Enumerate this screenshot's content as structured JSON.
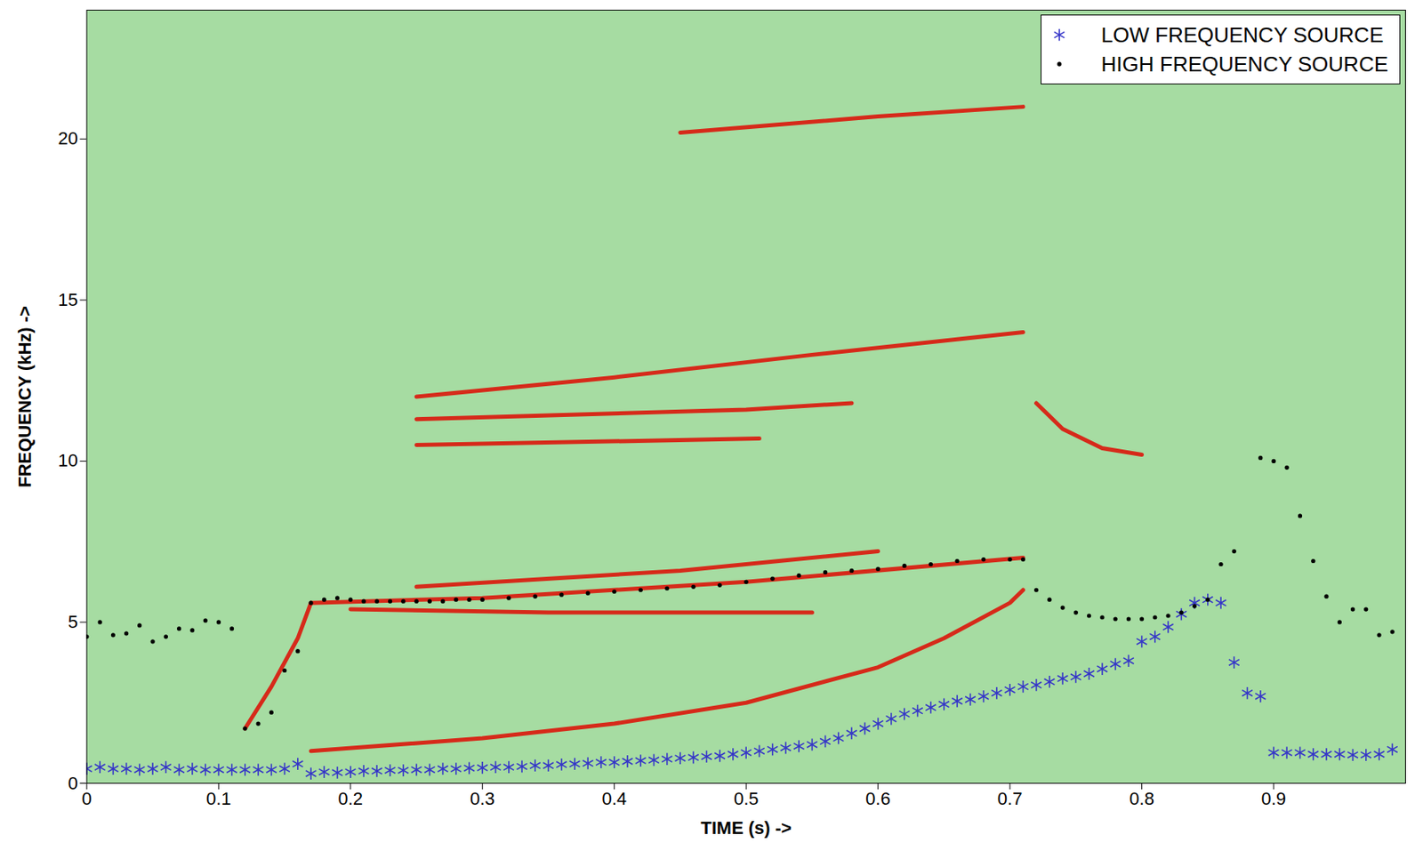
{
  "chart_data": {
    "type": "scatter",
    "xlabel": "TIME (s) ->",
    "ylabel": "FREQUENCY (kHz) ->",
    "xlim": [
      0,
      1
    ],
    "xticks": [
      0,
      0.1,
      0.2,
      0.3,
      0.4,
      0.5,
      0.6,
      0.7,
      0.8,
      0.9
    ],
    "ylim": [
      0,
      24
    ],
    "yticks": [
      0,
      5,
      10,
      15,
      20
    ],
    "legend": "top right",
    "series": [
      {
        "name": "LOW FREQUENCY SOURCE",
        "color": "#3535c8",
        "marker": "asterisk",
        "x": [
          0,
          0.01,
          0.02,
          0.03,
          0.04,
          0.05,
          0.06,
          0.07,
          0.08,
          0.09,
          0.1,
          0.11,
          0.12,
          0.13,
          0.14,
          0.15,
          0.16,
          0.17,
          0.18,
          0.19,
          0.2,
          0.21,
          0.22,
          0.23,
          0.24,
          0.25,
          0.26,
          0.27,
          0.28,
          0.29,
          0.3,
          0.31,
          0.32,
          0.33,
          0.34,
          0.35,
          0.36,
          0.37,
          0.38,
          0.39,
          0.4,
          0.41,
          0.42,
          0.43,
          0.44,
          0.45,
          0.46,
          0.47,
          0.48,
          0.49,
          0.5,
          0.51,
          0.52,
          0.53,
          0.54,
          0.55,
          0.56,
          0.57,
          0.58,
          0.59,
          0.6,
          0.61,
          0.62,
          0.63,
          0.64,
          0.65,
          0.66,
          0.67,
          0.68,
          0.69,
          0.7,
          0.71,
          0.72,
          0.73,
          0.74,
          0.75,
          0.76,
          0.77,
          0.78,
          0.79,
          0.8,
          0.81,
          0.82,
          0.83,
          0.84,
          0.85,
          0.86,
          0.87,
          0.88,
          0.89,
          0.9,
          0.91,
          0.92,
          0.93,
          0.94,
          0.95,
          0.96,
          0.97,
          0.98,
          0.99
        ],
        "values": [
          0.45,
          0.5,
          0.45,
          0.45,
          0.42,
          0.45,
          0.5,
          0.42,
          0.45,
          0.42,
          0.42,
          0.42,
          0.42,
          0.42,
          0.42,
          0.45,
          0.6,
          0.3,
          0.35,
          0.33,
          0.35,
          0.38,
          0.38,
          0.4,
          0.4,
          0.42,
          0.42,
          0.45,
          0.45,
          0.47,
          0.48,
          0.5,
          0.5,
          0.52,
          0.55,
          0.55,
          0.58,
          0.6,
          0.62,
          0.65,
          0.65,
          0.68,
          0.7,
          0.72,
          0.75,
          0.78,
          0.8,
          0.83,
          0.85,
          0.9,
          0.95,
          1.0,
          1.05,
          1.1,
          1.15,
          1.2,
          1.3,
          1.4,
          1.55,
          1.7,
          1.85,
          2.0,
          2.15,
          2.25,
          2.35,
          2.45,
          2.55,
          2.6,
          2.7,
          2.8,
          2.9,
          3.0,
          3.05,
          3.15,
          3.25,
          3.3,
          3.4,
          3.55,
          3.7,
          3.8,
          4.4,
          4.55,
          4.85,
          5.25,
          5.6,
          5.7,
          5.6,
          3.75,
          2.8,
          2.7,
          0.95,
          0.95,
          0.95,
          0.9,
          0.9,
          0.9,
          0.88,
          0.88,
          0.9,
          1.05
        ]
      },
      {
        "name": "HIGH FREQUENCY SOURCE",
        "color": "#000000",
        "marker": "dot",
        "x": [
          0,
          0.01,
          0.02,
          0.03,
          0.04,
          0.05,
          0.06,
          0.07,
          0.08,
          0.09,
          0.1,
          0.11,
          0.12,
          0.13,
          0.14,
          0.15,
          0.16,
          0.17,
          0.18,
          0.19,
          0.2,
          0.21,
          0.22,
          0.23,
          0.24,
          0.25,
          0.26,
          0.27,
          0.28,
          0.29,
          0.3,
          0.32,
          0.34,
          0.36,
          0.38,
          0.4,
          0.42,
          0.44,
          0.46,
          0.48,
          0.5,
          0.52,
          0.54,
          0.56,
          0.58,
          0.6,
          0.62,
          0.64,
          0.66,
          0.68,
          0.7,
          0.71,
          0.72,
          0.73,
          0.74,
          0.75,
          0.76,
          0.77,
          0.78,
          0.79,
          0.8,
          0.81,
          0.82,
          0.83,
          0.84,
          0.85,
          0.86,
          0.87,
          0.89,
          0.9,
          0.91,
          0.92,
          0.93,
          0.94,
          0.95,
          0.96,
          0.97,
          0.98,
          0.99
        ],
        "values": [
          4.55,
          5.0,
          4.6,
          4.65,
          4.9,
          4.4,
          4.55,
          4.8,
          4.75,
          5.05,
          5.0,
          4.8,
          1.7,
          1.85,
          2.2,
          3.5,
          4.1,
          5.6,
          5.7,
          5.75,
          5.7,
          5.65,
          5.65,
          5.65,
          5.65,
          5.65,
          5.65,
          5.65,
          5.7,
          5.7,
          5.7,
          5.75,
          5.8,
          5.85,
          5.9,
          5.95,
          6.0,
          6.05,
          6.1,
          6.15,
          6.25,
          6.35,
          6.45,
          6.55,
          6.6,
          6.65,
          6.75,
          6.8,
          6.9,
          6.95,
          6.95,
          6.95,
          6.0,
          5.7,
          5.45,
          5.3,
          5.2,
          5.15,
          5.1,
          5.1,
          5.1,
          5.15,
          5.2,
          5.3,
          5.5,
          5.7,
          6.8,
          7.2,
          10.1,
          10.0,
          9.8,
          8.3,
          6.9,
          5.8,
          5.0,
          5.4,
          5.4,
          4.6,
          4.7
        ]
      }
    ],
    "harmonics": [
      {
        "color": "#d62a1a",
        "x": [
          0.17,
          0.3,
          0.4,
          0.5,
          0.6,
          0.65,
          0.7,
          0.71
        ],
        "values": [
          1.0,
          1.4,
          1.85,
          2.5,
          3.6,
          4.5,
          5.6,
          6.0
        ]
      },
      {
        "color": "#d62a1a",
        "x": [
          0.17,
          0.3,
          0.5,
          0.71
        ],
        "values": [
          5.6,
          5.75,
          6.25,
          7.0
        ]
      },
      {
        "color": "#d62a1a",
        "x": [
          0.2,
          0.35,
          0.55
        ],
        "values": [
          5.4,
          5.3,
          5.3
        ]
      },
      {
        "color": "#d62a1a",
        "x": [
          0.25,
          0.45,
          0.6
        ],
        "values": [
          6.1,
          6.6,
          7.2
        ]
      },
      {
        "color": "#d62a1a",
        "x": [
          0.25,
          0.51
        ],
        "values": [
          10.5,
          10.7
        ]
      },
      {
        "color": "#d62a1a",
        "x": [
          0.25,
          0.5,
          0.58
        ],
        "values": [
          11.3,
          11.6,
          11.8
        ]
      },
      {
        "color": "#d62a1a",
        "x": [
          0.25,
          0.4,
          0.55,
          0.71
        ],
        "values": [
          12.0,
          12.6,
          13.3,
          14.0
        ]
      },
      {
        "color": "#d62a1a",
        "x": [
          0.45,
          0.6,
          0.71
        ],
        "values": [
          20.2,
          20.7,
          21.0
        ]
      },
      {
        "color": "#d62a1a",
        "x": [
          0.72,
          0.74,
          0.77,
          0.8
        ],
        "values": [
          11.8,
          11.0,
          10.4,
          10.2
        ]
      },
      {
        "color": "#d62a1a",
        "x": [
          0.12,
          0.14,
          0.16,
          0.17
        ],
        "values": [
          1.7,
          3.0,
          4.5,
          5.6
        ]
      }
    ]
  }
}
